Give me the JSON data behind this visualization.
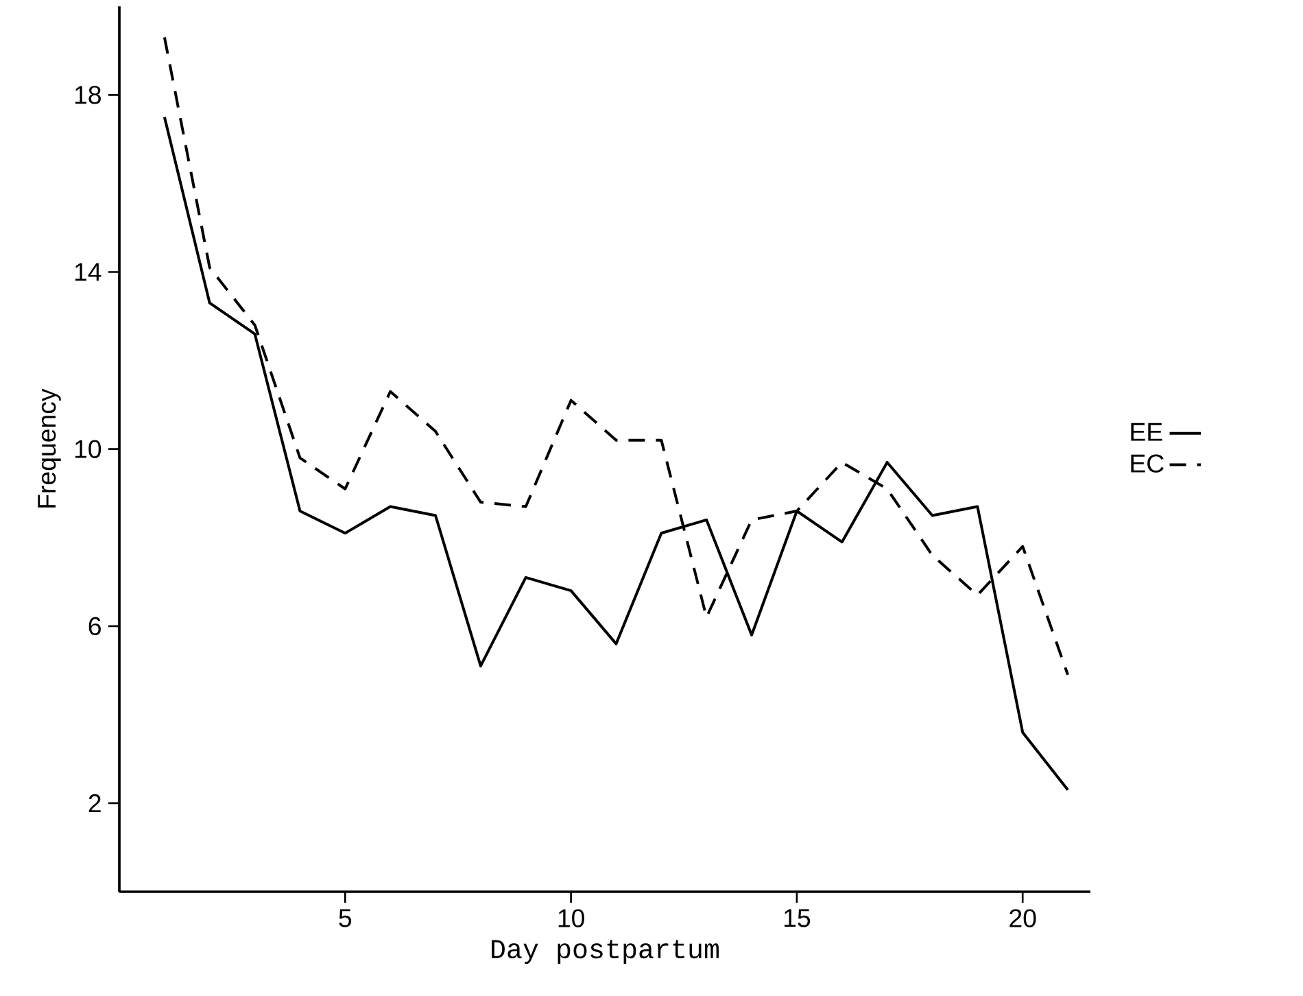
{
  "chart_data": {
    "type": "line",
    "xlabel": "Day postpartum",
    "ylabel": "Frequency",
    "x": [
      1,
      2,
      3,
      4,
      5,
      6,
      7,
      8,
      9,
      10,
      11,
      12,
      13,
      14,
      15,
      16,
      17,
      18,
      19,
      20,
      21
    ],
    "xlim": [
      0,
      21.5
    ],
    "ylim": [
      0,
      20
    ],
    "xticks": [
      5,
      10,
      15,
      20
    ],
    "yticks": [
      2,
      6,
      10,
      14,
      18
    ],
    "legend": "right",
    "series": [
      {
        "name": "EE",
        "color": "#000000",
        "line_style": "solid",
        "values": [
          17.5,
          13.3,
          12.6,
          8.6,
          8.1,
          8.7,
          8.5,
          5.1,
          7.1,
          6.8,
          5.6,
          8.1,
          8.4,
          5.8,
          8.6,
          7.9,
          9.7,
          8.5,
          8.7,
          3.6,
          2.3
        ]
      },
      {
        "name": "EC",
        "color": "#000000",
        "line_style": "dashed",
        "values": [
          19.3,
          14.1,
          12.8,
          9.8,
          9.1,
          11.3,
          10.4,
          8.8,
          8.7,
          11.1,
          10.2,
          10.2,
          6.2,
          8.4,
          8.6,
          9.7,
          9.1,
          7.6,
          6.7,
          7.8,
          4.9
        ]
      }
    ]
  }
}
